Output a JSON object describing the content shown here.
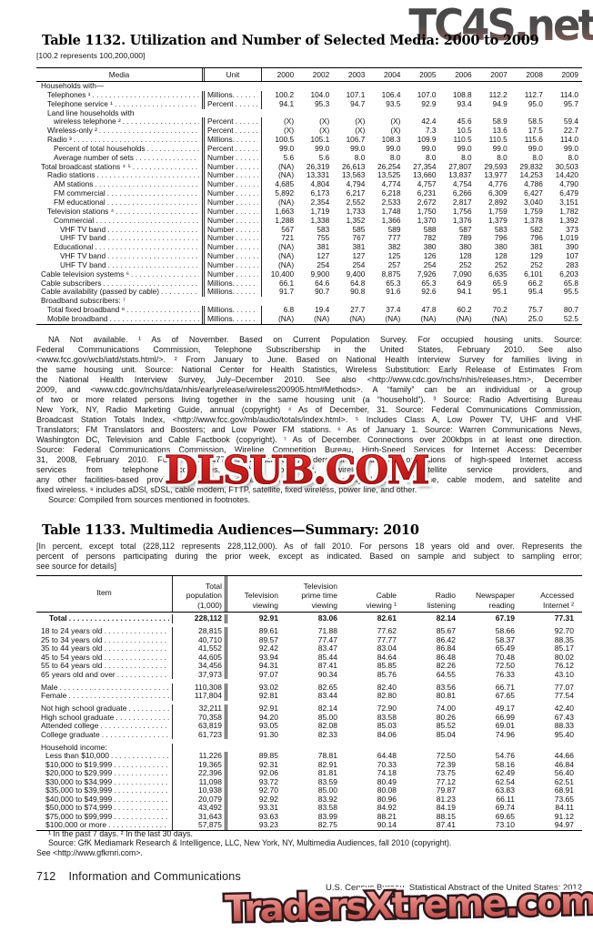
{
  "watermarks": {
    "top": "TC4S.net",
    "middle": "DLSUB.COM",
    "bottom": "TradersXtreme.com"
  },
  "table1132": {
    "title": "Table 1132. Utilization and Number of Selected Media: 2000 to 2009",
    "note": "[100.2 represents 100,200,000]",
    "col_media": "Media",
    "col_unit": "Unit",
    "years": [
      "2000",
      "2002",
      "2003",
      "2004",
      "2005",
      "2006",
      "2007",
      "2008",
      "2009"
    ],
    "rows": [
      {
        "label": "Households with—",
        "ind": 0,
        "unit": "",
        "v": null
      },
      {
        "label": "Telephones ¹",
        "ind": 1,
        "unit": "Millions.",
        "v": [
          "100.2",
          "104.0",
          "107.1",
          "106.4",
          "107.0",
          "108.8",
          "112.2",
          "112.7",
          "114.0"
        ]
      },
      {
        "label": "Telephone service ¹",
        "ind": 1,
        "unit": "Percent",
        "v": [
          "94.1",
          "95.3",
          "94.7",
          "93.5",
          "92.9",
          "93.4",
          "94.9",
          "95.0",
          "95.7"
        ]
      },
      {
        "label": "Land line households with",
        "ind": 1,
        "unit": "",
        "v": null
      },
      {
        "label": "wireless telephone ²",
        "ind": 2,
        "unit": "Percent",
        "v": [
          "(X)",
          "(X)",
          "(X)",
          "(X)",
          "42.4",
          "45.6",
          "58.9",
          "58.5",
          "59.4"
        ]
      },
      {
        "label": "Wireless-only ²",
        "ind": 1,
        "unit": "Percent",
        "v": [
          "(X)",
          "(X)",
          "(X)",
          "(X)",
          "7.3",
          "10.5",
          "13.6",
          "17.5",
          "22.7"
        ]
      },
      {
        "label": "Radio ³",
        "ind": 1,
        "unit": "Millions.",
        "v": [
          "100.5",
          "105.1",
          "106.7",
          "108.3",
          "109.9",
          "110.5",
          "110.5",
          "115.6",
          "114.0"
        ]
      },
      {
        "label": "Percent of total households",
        "ind": 2,
        "unit": "Percent",
        "v": [
          "99.0",
          "99.0",
          "99.0",
          "99.0",
          "99.0",
          "99.0",
          "99.0",
          "99.0",
          "99.0"
        ]
      },
      {
        "label": "Average number of sets",
        "ind": 2,
        "unit": "Number",
        "v": [
          "5.6",
          "5.6",
          "8.0",
          "8.0",
          "8.0",
          "8.0",
          "8.0",
          "8.0",
          "8.0"
        ]
      },
      {
        "label": "Total broadcast stations ⁴ ⁵",
        "ind": 0,
        "unit": "Number",
        "v": [
          "(NA)",
          "26,319",
          "26,613",
          "26,254",
          "27,354",
          "27,807",
          "29,593",
          "29,832",
          "30,503"
        ]
      },
      {
        "label": "Radio stations",
        "ind": 1,
        "unit": "Number",
        "v": [
          "(NA)",
          "13,331",
          "13,563",
          "13,525",
          "13,660",
          "13,837",
          "13,977",
          "14,253",
          "14,420"
        ]
      },
      {
        "label": "AM stations",
        "ind": 2,
        "unit": "Number",
        "v": [
          "4,685",
          "4,804",
          "4,794",
          "4,774",
          "4,757",
          "4,754",
          "4,776",
          "4,786",
          "4,790"
        ]
      },
      {
        "label": "FM commercial",
        "ind": 2,
        "unit": "Number",
        "v": [
          "5,892",
          "6,173",
          "6,217",
          "6,218",
          "6,231",
          "6,266",
          "6,309",
          "6,427",
          "6,479"
        ]
      },
      {
        "label": "FM educational",
        "ind": 2,
        "unit": "Number",
        "v": [
          "(NA)",
          "2,354",
          "2,552",
          "2,533",
          "2,672",
          "2,817",
          "2,892",
          "3,040",
          "3,151"
        ]
      },
      {
        "label": "Television stations ⁴",
        "ind": 1,
        "unit": "Number",
        "v": [
          "1,663",
          "1,719",
          "1,733",
          "1,748",
          "1,750",
          "1,756",
          "1,759",
          "1,759",
          "1,782"
        ]
      },
      {
        "label": "Commercial",
        "ind": 2,
        "unit": "Number",
        "v": [
          "1,288",
          "1,338",
          "1,352",
          "1,366",
          "1,370",
          "1,376",
          "1,379",
          "1,378",
          "1,392"
        ]
      },
      {
        "label": "VHF TV band",
        "ind": 3,
        "unit": "Number",
        "v": [
          "567",
          "583",
          "585",
          "589",
          "588",
          "587",
          "583",
          "582",
          "373"
        ]
      },
      {
        "label": "UHF TV band",
        "ind": 3,
        "unit": "Number",
        "v": [
          "721",
          "755",
          "767",
          "777",
          "782",
          "789",
          "796",
          "796",
          "1,019"
        ]
      },
      {
        "label": "Educational",
        "ind": 2,
        "unit": "Number",
        "v": [
          "(NA)",
          "381",
          "381",
          "382",
          "380",
          "380",
          "380",
          "381",
          "390"
        ]
      },
      {
        "label": "VHF TV band",
        "ind": 3,
        "unit": "Number",
        "v": [
          "(NA)",
          "127",
          "127",
          "125",
          "126",
          "128",
          "128",
          "129",
          "107"
        ]
      },
      {
        "label": "UHF TV band",
        "ind": 3,
        "unit": "Number",
        "v": [
          "(NA)",
          "254",
          "254",
          "257",
          "254",
          "252",
          "252",
          "252",
          "283"
        ]
      },
      {
        "label": "Cable television systems ⁶",
        "ind": 0,
        "unit": "Number",
        "v": [
          "10,400",
          "9,900",
          "9,400",
          "8,875",
          "7,926",
          "7,090",
          "6,635",
          "6,101",
          "6,203"
        ]
      },
      {
        "label": "Cable subscribers",
        "ind": 0,
        "unit": "Millions.",
        "v": [
          "66.1",
          "64.6",
          "64.8",
          "65.3",
          "65.3",
          "64.9",
          "65.9",
          "66.2",
          "65.8"
        ]
      },
      {
        "label": "Cable availability (passed by cable)",
        "ind": 0,
        "unit": "Millions.",
        "v": [
          "91.7",
          "90.7",
          "90.8",
          "91.6",
          "92.6",
          "94.1",
          "95.1",
          "95.4",
          "95.5"
        ]
      },
      {
        "label": "Broadband subscribers: ⁷",
        "ind": 0,
        "unit": "",
        "v": null
      },
      {
        "label": "Total fixed broadband ⁸",
        "ind": 1,
        "unit": "Millions.",
        "v": [
          "6.8",
          "19.4",
          "27.7",
          "37.4",
          "47.8",
          "60.2",
          "70.2",
          "75.7",
          "80.7"
        ]
      },
      {
        "label": "Mobile broadband",
        "ind": 1,
        "unit": "Millions.",
        "v": [
          "(NA)",
          "(NA)",
          "(NA)",
          "(NA)",
          "(NA)",
          "(NA)",
          "(NA)",
          "25.0",
          "52.5"
        ]
      }
    ],
    "footnote_lines": [
      {
        "t": "NA Not available. ¹ As of November. Based on Current Population Survey. For occupied housing units. Source:",
        "j": true,
        "ind": true
      },
      {
        "t": "Federal Communications Commission, Telephone Subscribership in the United States, February 2010. See also",
        "j": true
      },
      {
        "t": "<www.fcc.gov/wcb/iatd/stats.html/>. ² From January to June. Based on National Health Interview Survey for families living in",
        "j": true
      },
      {
        "t": "the same housing unit. Source: National Center for Health Statistics, Wireless Substitution: Early Release of Estimates From",
        "j": true
      },
      {
        "t": "the National Health Interview Survey, July–December 2010. See also <http://www.cdc.gov/nchs/nhis/releases.htm>, December",
        "j": true
      },
      {
        "t": "2009, and <www.cdc.gov/nchs/data/nhis/earlyrelease/wireless200905.htm#Methods>. A “family” can be an individual or a group",
        "j": true
      },
      {
        "t": "of two or more related persons living together in the same housing unit (a “household”). ³ Source:  Radio Advertising Bureau",
        "j": true
      },
      {
        "t": "New York, NY, Radio Marketing Guide, annual (copyright) ⁴ As of December, 31. Source: Federal Communications Commission,",
        "j": true
      },
      {
        "t": "Broadcast Station Totals Index, <http://www.fcc.gov/mb/audio/totals/index.html>. ⁵ Includes Class A, Low Power TV, UHF and VHF",
        "j": true
      },
      {
        "t": "Translators; FM Translators and Boosters; and Low Power FM stations. ⁶ As of January 1. Source: Warren Communications News,",
        "j": true
      },
      {
        "t": "Washington DC, Television and Cable Factbook (copyright). ⁷ As of December. Connections over 200kbps in at least one direction.",
        "j": true
      },
      {
        "t": "Source: Federal Communications Commission, Wireline Competition Bureau, High-Speed Services for Internet Access: December",
        "j": true
      },
      {
        "t": "31, 2008, February 2010. FCC Form 477 filers include providers of broadband connections of high-speed Internet access",
        "j": true
      },
      {
        "t": "services from telephone companies, cable operators, wireless and satellite service providers, and",
        "j": true
      },
      {
        "t": "any other facilities-based providers of advanced telecommunications capability Includes wireline, cable modem, and satelite and",
        "j": true
      },
      {
        "t": "fixed wireless. ⁸ includes aDSl, sDSL, cable modem, FTTP, satellite, fixed wireless, power line, and other.",
        "j": false
      },
      {
        "t": "Source: Compiled from sources mentioned in footnotes.",
        "j": false,
        "ind": true
      }
    ]
  },
  "table1133": {
    "title": "Table 1133. Multimedia Audiences—Summary: 2010",
    "note_lines": [
      {
        "t": "[In percent, except total (228,112 represents 228,112,000). As of fall 2010. For persons 18 years old and over. Represents the",
        "j": true
      },
      {
        "t": "percent of persons participating during the prior week, except as indicated. Based on sample and subject to sampling error;",
        "j": true
      },
      {
        "t": "see source for details]",
        "j": false
      }
    ],
    "columns": [
      "Item",
      "Total\npopulation\n(1,000)",
      "Television\nviewing",
      "Television\nprime time\nviewing",
      "Cable\nviewing ¹",
      "Radio\nlistening",
      "Newspaper\nreading",
      "Accessed\nInternet ²"
    ],
    "rows": [
      {
        "label": "Total",
        "ind": 2,
        "bold": true,
        "v": [
          "228,112",
          "92.91",
          "83.06",
          "82.61",
          "82.14",
          "67.19",
          "77.31"
        ]
      },
      {
        "label": "18 to 24 years old",
        "ind": 0,
        "gap": true,
        "v": [
          "28,815",
          "89.61",
          "71.88",
          "77.62",
          "85.67",
          "58.66",
          "92.70"
        ]
      },
      {
        "label": "25 to 34 years old",
        "ind": 0,
        "v": [
          "40,710",
          "89.57",
          "77.47",
          "77.77",
          "86.42",
          "58.37",
          "88.35"
        ]
      },
      {
        "label": "35 to 44 years old",
        "ind": 0,
        "v": [
          "41,552",
          "92.42",
          "83.47",
          "83.04",
          "86.84",
          "65.49",
          "85.17"
        ]
      },
      {
        "label": "45 to 54 years old",
        "ind": 0,
        "v": [
          "44,605",
          "93.94",
          "85.44",
          "84.64",
          "86.48",
          "70.48",
          "80.02"
        ]
      },
      {
        "label": "55 to 64 years old",
        "ind": 0,
        "v": [
          "34,456",
          "94.31",
          "87.41",
          "85.85",
          "82.26",
          "72.50",
          "76.12"
        ]
      },
      {
        "label": "65 years old and over",
        "ind": 0,
        "v": [
          "37,973",
          "97.07",
          "90.34",
          "85.76",
          "64.55",
          "76.33",
          "43.10"
        ]
      },
      {
        "label": "Male",
        "ind": 0,
        "gap": true,
        "v": [
          "110,308",
          "93.02",
          "82.65",
          "82.40",
          "83.56",
          "66.71",
          "77.07"
        ]
      },
      {
        "label": "Female",
        "ind": 0,
        "v": [
          "117,804",
          "92.81",
          "83.44",
          "82.80",
          "80.81",
          "67.65",
          "77.54"
        ]
      },
      {
        "label": "Not high school graduate",
        "ind": 0,
        "gap": true,
        "v": [
          "32,211",
          "92.91",
          "82.14",
          "72.90",
          "74.00",
          "49.17",
          "42.40"
        ]
      },
      {
        "label": "High school graduate",
        "ind": 0,
        "v": [
          "70,358",
          "94.20",
          "85.00",
          "83.58",
          "80.26",
          "66.99",
          "67.43"
        ]
      },
      {
        "label": "Attended college",
        "ind": 0,
        "v": [
          "63,819",
          "93.05",
          "82.08",
          "85.03",
          "85.52",
          "69.01",
          "88.33"
        ]
      },
      {
        "label": "College graduate",
        "ind": 0,
        "v": [
          "61,723",
          "91.30",
          "82.33",
          "84.06",
          "85.04",
          "74.96",
          "95.40"
        ]
      },
      {
        "label": "Household income:",
        "ind": 0,
        "gap": true,
        "v": null
      },
      {
        "label": "Less than $10,000",
        "ind": 1,
        "v": [
          "11,226",
          "89.85",
          "78.81",
          "64.48",
          "72.50",
          "54.76",
          "44.66"
        ]
      },
      {
        "label": "$10,000 to $19,999",
        "ind": 1,
        "v": [
          "19,365",
          "92.31",
          "82.91",
          "70.33",
          "72.39",
          "58.16",
          "46.84"
        ]
      },
      {
        "label": "$20,000 to $29,999",
        "ind": 1,
        "v": [
          "22,396",
          "92.06",
          "81.81",
          "74.18",
          "73.75",
          "62.49",
          "56.40"
        ]
      },
      {
        "label": "$30,000 to $34,999",
        "ind": 1,
        "v": [
          "11,098",
          "93.72",
          "83.59",
          "80.49",
          "77.12",
          "62.54",
          "62.51"
        ]
      },
      {
        "label": "$35,000 to $39,999",
        "ind": 1,
        "v": [
          "10,938",
          "92.70",
          "85.00",
          "80.08",
          "79.87",
          "63.83",
          "68.91"
        ]
      },
      {
        "label": "$40,000 to $49,999",
        "ind": 1,
        "v": [
          "20,079",
          "92.92",
          "83.92",
          "80.96",
          "81.23",
          "66.11",
          "73.65"
        ]
      },
      {
        "label": "$50,000 to $74,999",
        "ind": 1,
        "v": [
          "43,492",
          "93.31",
          "83.58",
          "84.92",
          "84.19",
          "69.74",
          "84.11"
        ]
      },
      {
        "label": "$75,000 to $99,999",
        "ind": 1,
        "v": [
          "31,643",
          "93.63",
          "83.99",
          "88.21",
          "88.15",
          "69.65",
          "91.12"
        ]
      },
      {
        "label": "$100,000 or more",
        "ind": 1,
        "v": [
          "57,875",
          "93.23",
          "82.75",
          "90.14",
          "87.41",
          "73.10",
          "94.97"
        ]
      }
    ],
    "footnote_lines": [
      {
        "t": "¹ In the past 7 days. ² In the last 30 days.",
        "j": false,
        "ind": true
      },
      {
        "t": "Source: GfK Mediamark Research & Intelligence, LLC, New York, NY, Multimedia Audiences, fall 2010 (copyright).",
        "j": false,
        "ind": true
      },
      {
        "t": "See <http://www.gfkmri.com>.",
        "j": false
      }
    ]
  },
  "footer": {
    "page_number": "712",
    "section": "Information and Communications",
    "census_line": "U.S. Census Bureau, Statistical Abstract of the United States: 2012"
  }
}
